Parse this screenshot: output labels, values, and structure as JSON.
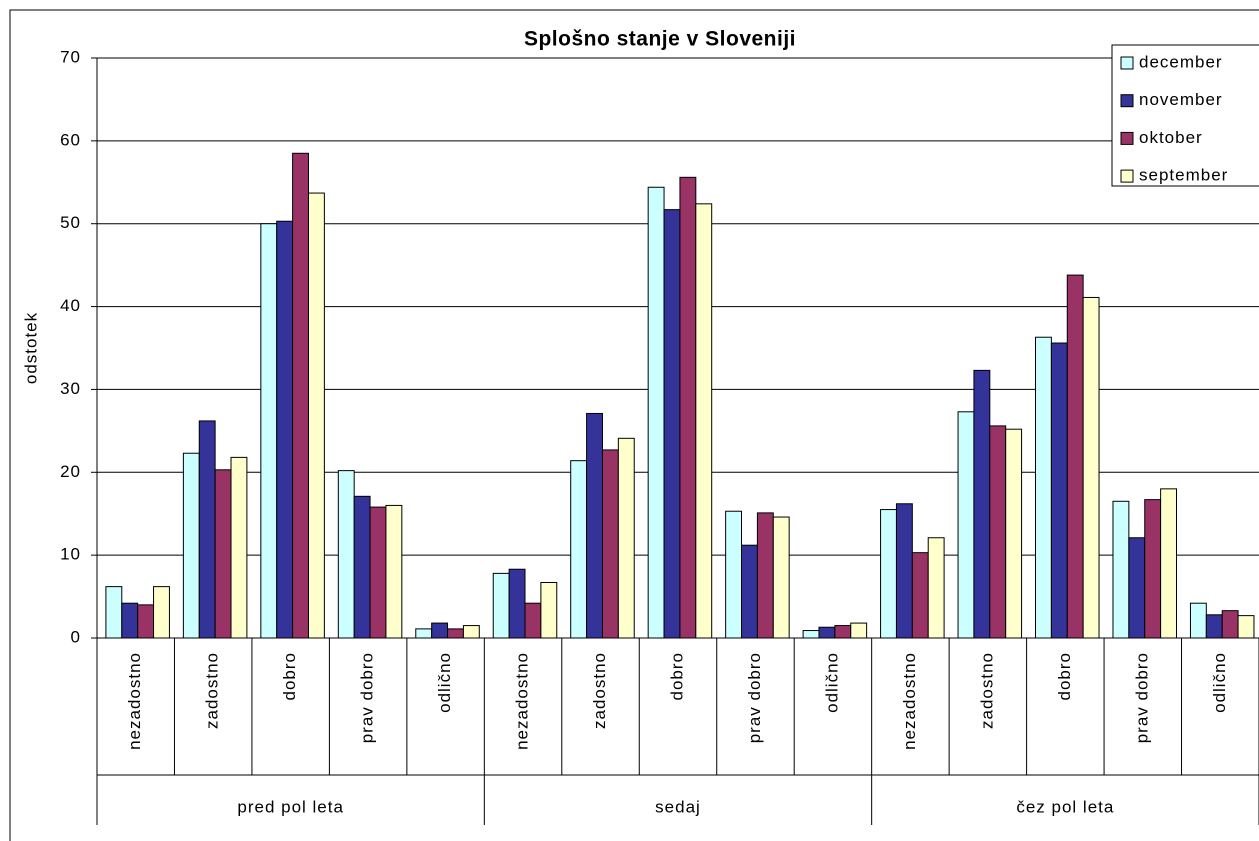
{
  "chart_data": {
    "type": "bar",
    "title": "Splošno stanje v Sloveniji",
    "y_label": "odstotek",
    "categories": [
      "nezadostno",
      "zadostno",
      "dobro",
      "prav dobro",
      "odlično",
      "nezadostno",
      "zadostno",
      "dobro",
      "prav dobro",
      "odlično",
      "nezadostno",
      "zadostno",
      "dobro",
      "prav dobro",
      "odlično"
    ],
    "groups": [
      "pred pol leta",
      "sedaj",
      "čez pol leta"
    ],
    "series": [
      {
        "name": "december",
        "color": "#ccffff",
        "values": [
          6.2,
          22.3,
          50.0,
          20.2,
          1.1,
          7.8,
          21.4,
          54.4,
          15.3,
          0.9,
          15.5,
          27.3,
          36.3,
          16.5,
          4.2
        ]
      },
      {
        "name": "november",
        "color": "#333399",
        "values": [
          4.2,
          26.2,
          50.3,
          17.1,
          1.8,
          8.3,
          27.1,
          51.7,
          11.2,
          1.3,
          16.2,
          32.3,
          35.6,
          12.1,
          2.8
        ]
      },
      {
        "name": "oktober",
        "color": "#993366",
        "values": [
          4.0,
          20.3,
          58.5,
          15.8,
          1.1,
          4.2,
          22.7,
          55.6,
          15.1,
          1.5,
          10.3,
          25.6,
          43.8,
          16.7,
          3.3
        ]
      },
      {
        "name": "september",
        "color": "#ffffcc",
        "values": [
          6.2,
          21.8,
          53.7,
          16.0,
          1.5,
          6.7,
          24.1,
          52.4,
          14.6,
          1.8,
          12.1,
          25.2,
          41.1,
          18.0,
          2.7
        ]
      }
    ],
    "ylim": [
      0,
      70
    ],
    "yticks": [
      0,
      10,
      20,
      30,
      40,
      50,
      60,
      70
    ],
    "grid": true,
    "legend": "top-right"
  }
}
